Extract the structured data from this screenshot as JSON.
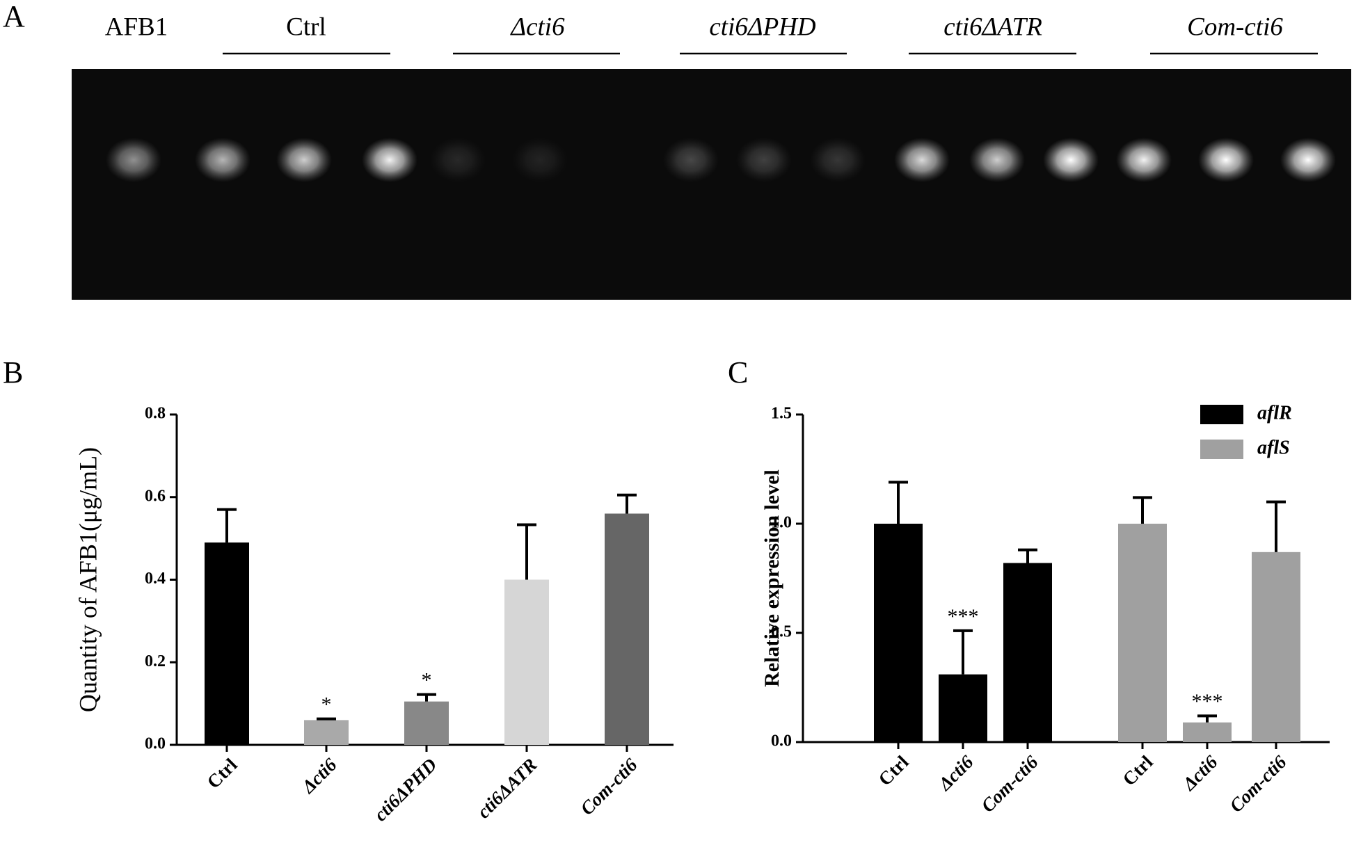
{
  "panel_a": {
    "label": "A",
    "lanes": [
      "AFB1",
      "Ctrl",
      "Δcti6",
      "cti6ΔPHD",
      "cti6ΔATR",
      "Com-cti6"
    ]
  },
  "chart_data": [
    {
      "type": "bar",
      "panel": "B",
      "ylabel": "Quantity of AFB1(μg/mL)",
      "categories": [
        "Ctrl",
        "Δcti6",
        "cti6ΔPHD",
        "cti6ΔATR",
        "Com-cti6"
      ],
      "values": [
        0.49,
        0.06,
        0.105,
        0.4,
        0.56
      ],
      "errors": [
        0.08,
        0.003,
        0.017,
        0.133,
        0.045
      ],
      "colors": [
        "#000000",
        "#a9a9a9",
        "#888888",
        "#d6d6d6",
        "#666666"
      ],
      "significance": [
        null,
        "*",
        "*",
        null,
        null
      ],
      "ylim": [
        0,
        0.8
      ],
      "yticks": [
        {
          "value": 0,
          "label": "0.0"
        },
        0.2,
        0.4,
        0.6,
        0.8
      ]
    },
    {
      "type": "grouped_bar",
      "panel": "C",
      "ylabel": "Relative expression level",
      "categories": [
        "Ctrl",
        "Δcti6",
        "Com-cti6",
        "Ctrl",
        "Δcti6",
        "Com-cti6"
      ],
      "series": [
        {
          "name": "aflR",
          "color": "#000000",
          "values": [
            1.0,
            0.31,
            0.82,
            null,
            null,
            null
          ],
          "errors": [
            0.19,
            0.2,
            0.06,
            null,
            null,
            null
          ]
        },
        {
          "name": "aflS",
          "color": "#a0a0a0",
          "values": [
            null,
            null,
            null,
            1.0,
            0.09,
            0.87
          ],
          "errors": [
            null,
            null,
            null,
            0.12,
            0.03,
            0.23
          ]
        }
      ],
      "significance": [
        null,
        "***",
        null,
        null,
        "***",
        null
      ],
      "legend": "upper right",
      "ylim": [
        0,
        1.5
      ],
      "yticks": [
        {
          "value": 0,
          "label": "0.0"
        },
        0.5,
        {
          "value": 1,
          "label": "1.0"
        },
        1.5
      ]
    }
  ]
}
